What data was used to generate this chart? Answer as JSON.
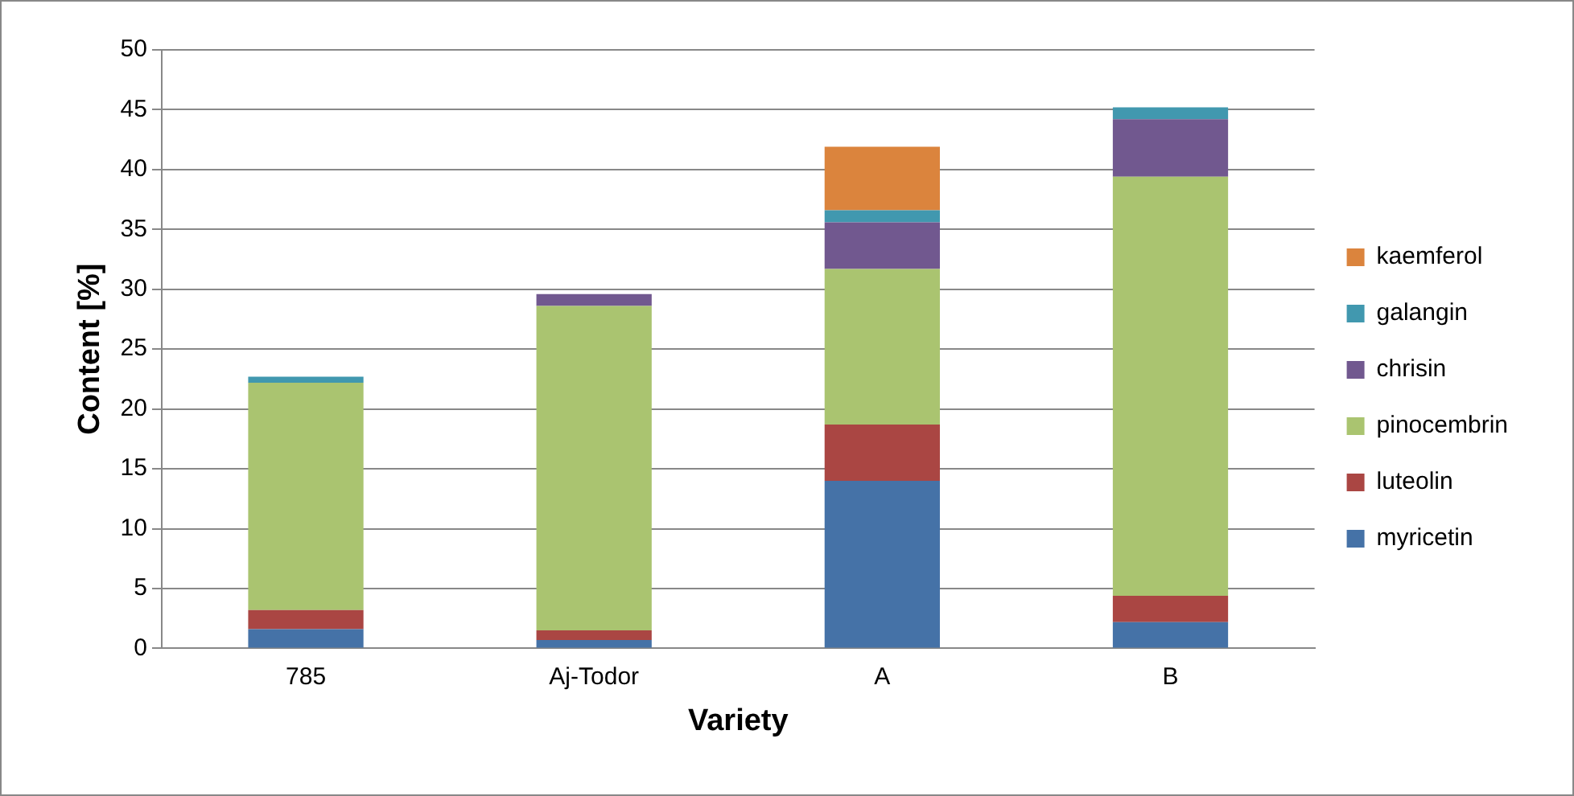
{
  "chart_data": {
    "type": "bar",
    "stacked": true,
    "xlabel": "Variety",
    "ylabel": "Content [%]",
    "categories": [
      "785",
      "Aj-Todor",
      "A",
      "B"
    ],
    "series": [
      {
        "name": "myricetin",
        "color": "#4572a7",
        "values": [
          1.6,
          0.7,
          14.0,
          2.2
        ]
      },
      {
        "name": "luteolin",
        "color": "#aa4643",
        "values": [
          1.6,
          0.8,
          4.7,
          2.2
        ]
      },
      {
        "name": "pinocembrin",
        "color": "#aac470",
        "values": [
          19.0,
          27.1,
          13.0,
          35.0
        ]
      },
      {
        "name": "chrisin",
        "color": "#71588f",
        "values": [
          null,
          1.0,
          3.9,
          4.8
        ]
      },
      {
        "name": "galangin",
        "color": "#4198af",
        "values": [
          0.5,
          null,
          1.0,
          1.0
        ]
      },
      {
        "name": "kaemferol",
        "color": "#db843d",
        "values": [
          null,
          null,
          5.3,
          null
        ]
      }
    ],
    "ylim": [
      0,
      50
    ],
    "yticks": [
      0,
      5,
      10,
      15,
      20,
      25,
      30,
      35,
      40,
      45,
      50
    ],
    "grid": "y",
    "legend": "right"
  }
}
